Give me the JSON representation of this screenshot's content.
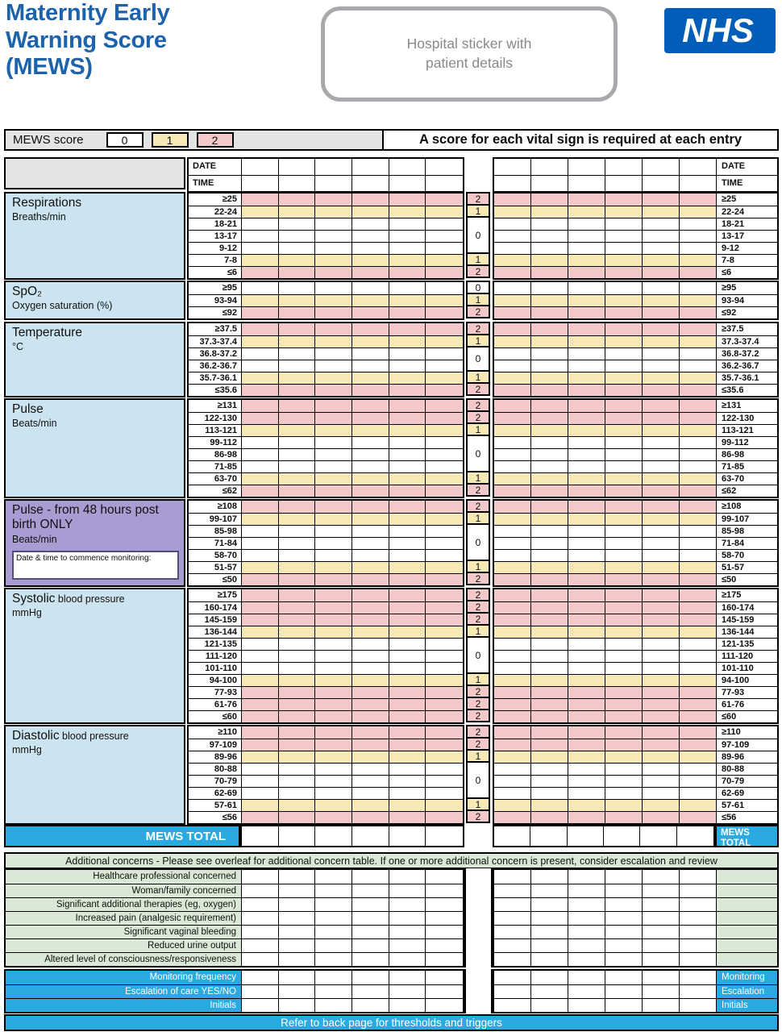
{
  "colors": {
    "pink": "#f2c9c8",
    "yellow": "#f7e9b5",
    "white": "#ffffff",
    "label_blue": "#cbe4ef",
    "purple": "#a89cd2",
    "cyan": "#29abe2",
    "green": "#d9e9d5",
    "grey": "#e3e4e4",
    "nhs_blue": "#005eb8",
    "title_blue": "#1c63ac",
    "sticker_border": "#a7a9ac",
    "sticker_text": "#87898c"
  },
  "header": {
    "title": "Maternity Early\nWarning Score\n(MEWS)",
    "sticker": "Hospital sticker with\npatient details",
    "nhs_logo": "NHS"
  },
  "score_key": {
    "label": "MEWS score",
    "boxes": [
      {
        "value": "0",
        "band": "white"
      },
      {
        "value": "1",
        "band": "yellow"
      },
      {
        "value": "2",
        "band": "pink"
      }
    ],
    "note": "A score for each vital sign is required at each entry"
  },
  "datetime_header": {
    "date_label": "DATE",
    "time_label": "TIME",
    "columns_per_side": 6
  },
  "sections": [
    {
      "id": "respirations",
      "label": "Respirations",
      "label_small": "",
      "sublabel": "Breaths/min",
      "label_band": "blue",
      "rows": [
        {
          "range": "≥25",
          "band": "pink"
        },
        {
          "range": "22-24",
          "band": "yellow"
        },
        {
          "range": "18-21",
          "band": "white"
        },
        {
          "range": "13-17",
          "band": "white"
        },
        {
          "range": "9-12",
          "band": "white"
        },
        {
          "range": "7-8",
          "band": "yellow"
        },
        {
          "range": "≤6",
          "band": "pink"
        }
      ],
      "scores": [
        {
          "value": "2",
          "span": 1,
          "band": "pink"
        },
        {
          "value": "1",
          "span": 1,
          "band": "yellow"
        },
        {
          "value": "0",
          "span": 3,
          "band": "white"
        },
        {
          "value": "1",
          "span": 1,
          "band": "yellow"
        },
        {
          "value": "2",
          "span": 1,
          "band": "pink"
        }
      ]
    },
    {
      "id": "spo2",
      "label": "SpO₂",
      "label_small": "",
      "sublabel": "Oxygen saturation (%)",
      "label_band": "blue",
      "rows": [
        {
          "range": "≥95",
          "band": "white"
        },
        {
          "range": "93-94",
          "band": "yellow"
        },
        {
          "range": "≤92",
          "band": "pink"
        }
      ],
      "scores": [
        {
          "value": "0",
          "span": 1,
          "band": "white"
        },
        {
          "value": "1",
          "span": 1,
          "band": "yellow"
        },
        {
          "value": "2",
          "span": 1,
          "band": "pink"
        }
      ]
    },
    {
      "id": "temperature",
      "label": "Temperature",
      "label_small": "",
      "sublabel": "°C",
      "label_band": "blue",
      "rows": [
        {
          "range": "≥37.5",
          "band": "pink"
        },
        {
          "range": "37.3-37.4",
          "band": "yellow"
        },
        {
          "range": "36.8-37.2",
          "band": "white"
        },
        {
          "range": "36.2-36.7",
          "band": "white"
        },
        {
          "range": "35.7-36.1",
          "band": "yellow"
        },
        {
          "range": "≤35.6",
          "band": "pink"
        }
      ],
      "scores": [
        {
          "value": "2",
          "span": 1,
          "band": "pink"
        },
        {
          "value": "1",
          "span": 1,
          "band": "yellow"
        },
        {
          "value": "0",
          "span": 2,
          "band": "white"
        },
        {
          "value": "1",
          "span": 1,
          "band": "yellow"
        },
        {
          "value": "2",
          "span": 1,
          "band": "pink"
        }
      ]
    },
    {
      "id": "pulse",
      "label": "Pulse",
      "label_small": "",
      "sublabel": "Beats/min",
      "label_band": "blue",
      "rows": [
        {
          "range": "≥131",
          "band": "pink"
        },
        {
          "range": "122-130",
          "band": "pink"
        },
        {
          "range": "113-121",
          "band": "yellow"
        },
        {
          "range": "99-112",
          "band": "white"
        },
        {
          "range": "86-98",
          "band": "white"
        },
        {
          "range": "71-85",
          "band": "white"
        },
        {
          "range": "63-70",
          "band": "yellow"
        },
        {
          "range": "≤62",
          "band": "pink"
        }
      ],
      "scores": [
        {
          "value": "2",
          "span": 1,
          "band": "pink"
        },
        {
          "value": "2",
          "span": 1,
          "band": "pink"
        },
        {
          "value": "1",
          "span": 1,
          "band": "yellow"
        },
        {
          "value": "0",
          "span": 3,
          "band": "white"
        },
        {
          "value": "1",
          "span": 1,
          "band": "yellow"
        },
        {
          "value": "2",
          "span": 1,
          "band": "pink"
        }
      ]
    },
    {
      "id": "pulse48",
      "label": "Pulse - from 48 hours post birth ONLY",
      "label_small": "",
      "sublabel": "Beats/min",
      "label_band": "purple",
      "note": "Date & time to commence monitoring:",
      "rows": [
        {
          "range": "≥108",
          "band": "pink"
        },
        {
          "range": "99-107",
          "band": "yellow"
        },
        {
          "range": "85-98",
          "band": "white"
        },
        {
          "range": "71-84",
          "band": "white"
        },
        {
          "range": "58-70",
          "band": "white"
        },
        {
          "range": "51-57",
          "band": "yellow"
        },
        {
          "range": "≤50",
          "band": "pink"
        }
      ],
      "scores": [
        {
          "value": "2",
          "span": 1,
          "band": "pink"
        },
        {
          "value": "1",
          "span": 1,
          "band": "yellow"
        },
        {
          "value": "0",
          "span": 3,
          "band": "white"
        },
        {
          "value": "1",
          "span": 1,
          "band": "yellow"
        },
        {
          "value": "2",
          "span": 1,
          "band": "pink"
        }
      ]
    },
    {
      "id": "systolic",
      "label": "Systolic",
      "label_small": " blood pressure",
      "sublabel": "mmHg",
      "label_band": "blue",
      "rows": [
        {
          "range": "≥175",
          "band": "pink"
        },
        {
          "range": "160-174",
          "band": "pink"
        },
        {
          "range": "145-159",
          "band": "pink"
        },
        {
          "range": "136-144",
          "band": "yellow"
        },
        {
          "range": "121-135",
          "band": "white"
        },
        {
          "range": "111-120",
          "band": "white"
        },
        {
          "range": "101-110",
          "band": "white"
        },
        {
          "range": "94-100",
          "band": "yellow"
        },
        {
          "range": "77-93",
          "band": "pink"
        },
        {
          "range": "61-76",
          "band": "pink"
        },
        {
          "range": "≤60",
          "band": "pink"
        }
      ],
      "scores": [
        {
          "value": "2",
          "span": 1,
          "band": "pink"
        },
        {
          "value": "2",
          "span": 1,
          "band": "pink"
        },
        {
          "value": "2",
          "span": 1,
          "band": "pink"
        },
        {
          "value": "1",
          "span": 1,
          "band": "yellow"
        },
        {
          "value": "0",
          "span": 3,
          "band": "white"
        },
        {
          "value": "1",
          "span": 1,
          "band": "yellow"
        },
        {
          "value": "2",
          "span": 1,
          "band": "pink"
        },
        {
          "value": "2",
          "span": 1,
          "band": "pink"
        },
        {
          "value": "2",
          "span": 1,
          "band": "pink"
        }
      ]
    },
    {
      "id": "diastolic",
      "label": "Diastolic",
      "label_small": " blood pressure",
      "sublabel": "mmHg",
      "label_band": "blue",
      "rows": [
        {
          "range": "≥110",
          "band": "pink"
        },
        {
          "range": "97-109",
          "band": "pink"
        },
        {
          "range": "89-96",
          "band": "yellow"
        },
        {
          "range": "80-88",
          "band": "white"
        },
        {
          "range": "70-79",
          "band": "white"
        },
        {
          "range": "62-69",
          "band": "white"
        },
        {
          "range": "57-61",
          "band": "yellow"
        },
        {
          "range": "≤56",
          "band": "pink"
        }
      ],
      "scores": [
        {
          "value": "2",
          "span": 1,
          "band": "pink"
        },
        {
          "value": "2",
          "span": 1,
          "band": "pink"
        },
        {
          "value": "1",
          "span": 1,
          "band": "yellow"
        },
        {
          "value": "0",
          "span": 3,
          "band": "white"
        },
        {
          "value": "1",
          "span": 1,
          "band": "yellow"
        },
        {
          "value": "2",
          "span": 1,
          "band": "pink"
        }
      ]
    }
  ],
  "mews_total": {
    "label": "MEWS TOTAL",
    "right_label": "MEWS\nTOTAL"
  },
  "additional_concerns": {
    "banner": "Additional concerns - Please see overleaf for additional concern table. If one or more additional concern is present, consider escalation and review",
    "items": [
      "Healthcare professional concerned",
      "Woman/family concerned",
      "Significant additional therapies (eg, oxygen)",
      "Increased pain (analgesic requirement)",
      "Significant vaginal bleeding",
      "Reduced urine output",
      "Altered level of consciousness/responsiveness"
    ]
  },
  "monitoring_rows": [
    {
      "label": "Monitoring frequency",
      "right_label": "Monitoring"
    },
    {
      "label": "Escalation of care YES/NO",
      "right_label": "Escalation"
    },
    {
      "label": "Initials",
      "right_label": "Initials"
    }
  ],
  "footer": "Refer to back page for thresholds and triggers"
}
